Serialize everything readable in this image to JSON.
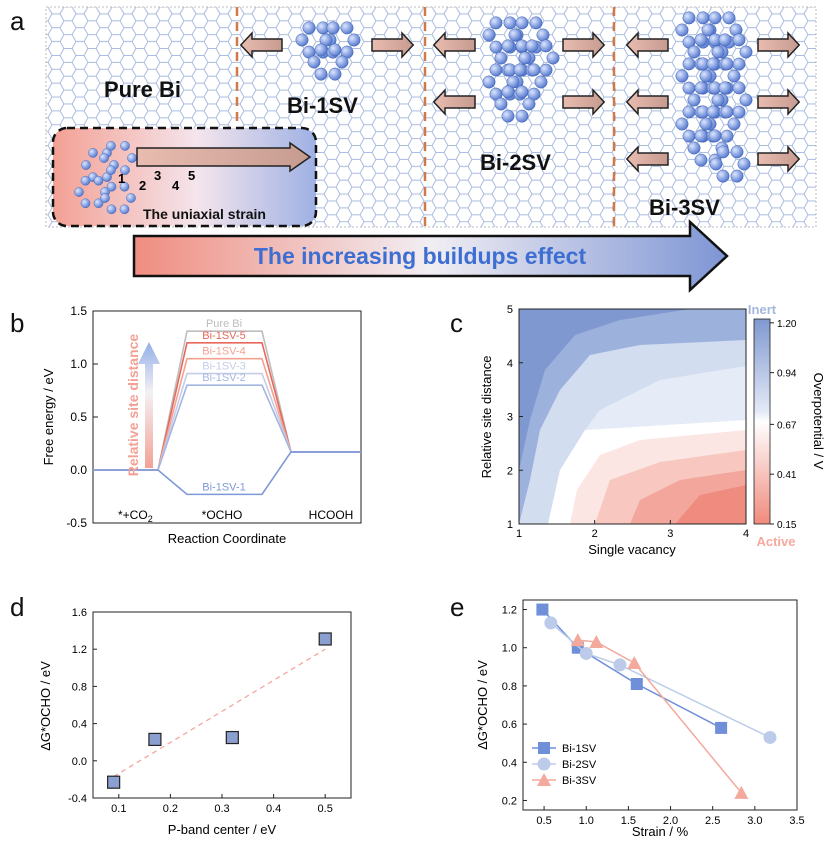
{
  "panels": {
    "a": "a",
    "b": "b",
    "c": "c",
    "d": "d",
    "e": "e"
  },
  "panel_a": {
    "labels": [
      "Pure Bi",
      "Bi-1SV",
      "Bi-2SV",
      "Bi-3SV"
    ],
    "inset_caption": "The uniaxial strain",
    "site_numbers": [
      "1",
      "2",
      "3",
      "4",
      "5"
    ],
    "arrow_text": "The increasing buildups effect",
    "colors": {
      "lattice": "#8fa6d6",
      "atom": "#6f8fd8",
      "divider": "#d07a4a",
      "arrow_start": "#f08d80",
      "arrow_end": "#6a84c9",
      "arrow_text": "#3d6ed1"
    }
  },
  "chart_data": [
    {
      "id": "b",
      "type": "line",
      "xlabel": "Reaction Coordinate",
      "ylabel": "Free energy / eV",
      "ylim": [
        -0.5,
        1.5
      ],
      "yticks": [
        "-0.5",
        "0.0",
        "0.5",
        "1.0",
        "1.5"
      ],
      "categories": [
        "*+CO2",
        "*OCHO",
        "HCOOH"
      ],
      "annotation": "Relative site distance",
      "series": [
        {
          "name": "Pure Bi",
          "values": [
            0,
            1.31,
            0.17
          ],
          "color": "#bdbdbd"
        },
        {
          "name": "Bi-1SV-5",
          "values": [
            0,
            1.2,
            0.17
          ],
          "color": "#e8685c"
        },
        {
          "name": "Bi-1SV-4",
          "values": [
            0,
            1.05,
            0.17
          ],
          "color": "#f4a190"
        },
        {
          "name": "Bi-1SV-3",
          "values": [
            0,
            0.91,
            0.17
          ],
          "color": "#c5cde9"
        },
        {
          "name": "Bi-1SV-2",
          "values": [
            0,
            0.8,
            0.17
          ],
          "color": "#a4b6e0"
        },
        {
          "name": "Bi-1SV-1",
          "values": [
            0,
            -0.23,
            0.17
          ],
          "color": "#7e98d8"
        }
      ]
    },
    {
      "id": "c",
      "type": "heatmap",
      "xlabel": "Single vacancy",
      "ylabel": "Relative site distance",
      "xlim": [
        1,
        4
      ],
      "ylim": [
        1,
        5
      ],
      "xticks": [
        "1",
        "2",
        "3",
        "4"
      ],
      "yticks": [
        "1",
        "2",
        "3",
        "4",
        "5"
      ],
      "colorbar": {
        "label": "Overpotential / V",
        "ticks": [
          "1.20",
          "0.94",
          "0.67",
          "0.41",
          "0.15"
        ],
        "top_label": "Inert",
        "bottom_label": "Active",
        "range": [
          0.15,
          1.22
        ]
      }
    },
    {
      "id": "d",
      "type": "scatter",
      "xlabel": "P-band center / eV",
      "ylabel": "ΔG*OCHO / eV",
      "xlim": [
        0.05,
        0.55
      ],
      "ylim": [
        -0.4,
        1.6
      ],
      "xticks": [
        "0.1",
        "0.2",
        "0.3",
        "0.4",
        "0.5"
      ],
      "yticks": [
        "-0.4",
        "0.0",
        "0.4",
        "0.8",
        "1.2",
        "1.6"
      ],
      "points": [
        {
          "x": 0.09,
          "y": -0.23
        },
        {
          "x": 0.17,
          "y": 0.23
        },
        {
          "x": 0.32,
          "y": 0.25
        },
        {
          "x": 0.5,
          "y": 1.31
        }
      ],
      "fit": [
        {
          "x": 0.09,
          "y": -0.17
        },
        {
          "x": 0.5,
          "y": 1.2
        }
      ]
    },
    {
      "id": "e",
      "type": "line",
      "xlabel": "Strain / %",
      "ylabel": "ΔG*OCHO / eV",
      "xlim": [
        0.25,
        3.5
      ],
      "ylim": [
        0.15,
        1.25
      ],
      "xticks": [
        "0.5",
        "1.0",
        "1.5",
        "2.0",
        "2.5",
        "3.0",
        "3.5"
      ],
      "yticks": [
        "0.2",
        "0.4",
        "0.6",
        "0.8",
        "1.0",
        "1.2"
      ],
      "legend_position": "bottom-left",
      "series": [
        {
          "name": "Bi-1SV",
          "marker": "square",
          "color": "#6f8fd8",
          "x": [
            0.48,
            0.9,
            1.6,
            2.6
          ],
          "y": [
            1.2,
            1.0,
            0.81,
            0.58
          ]
        },
        {
          "name": "Bi-2SV",
          "marker": "circle",
          "color": "#bccbea",
          "x": [
            0.58,
            1.0,
            1.4,
            3.18
          ],
          "y": [
            1.13,
            0.97,
            0.91,
            0.53
          ]
        },
        {
          "name": "Bi-3SV",
          "marker": "triangle",
          "color": "#f3a99c",
          "x": [
            0.9,
            1.12,
            1.57,
            2.84
          ],
          "y": [
            1.04,
            1.03,
            0.92,
            0.24
          ]
        }
      ]
    }
  ]
}
